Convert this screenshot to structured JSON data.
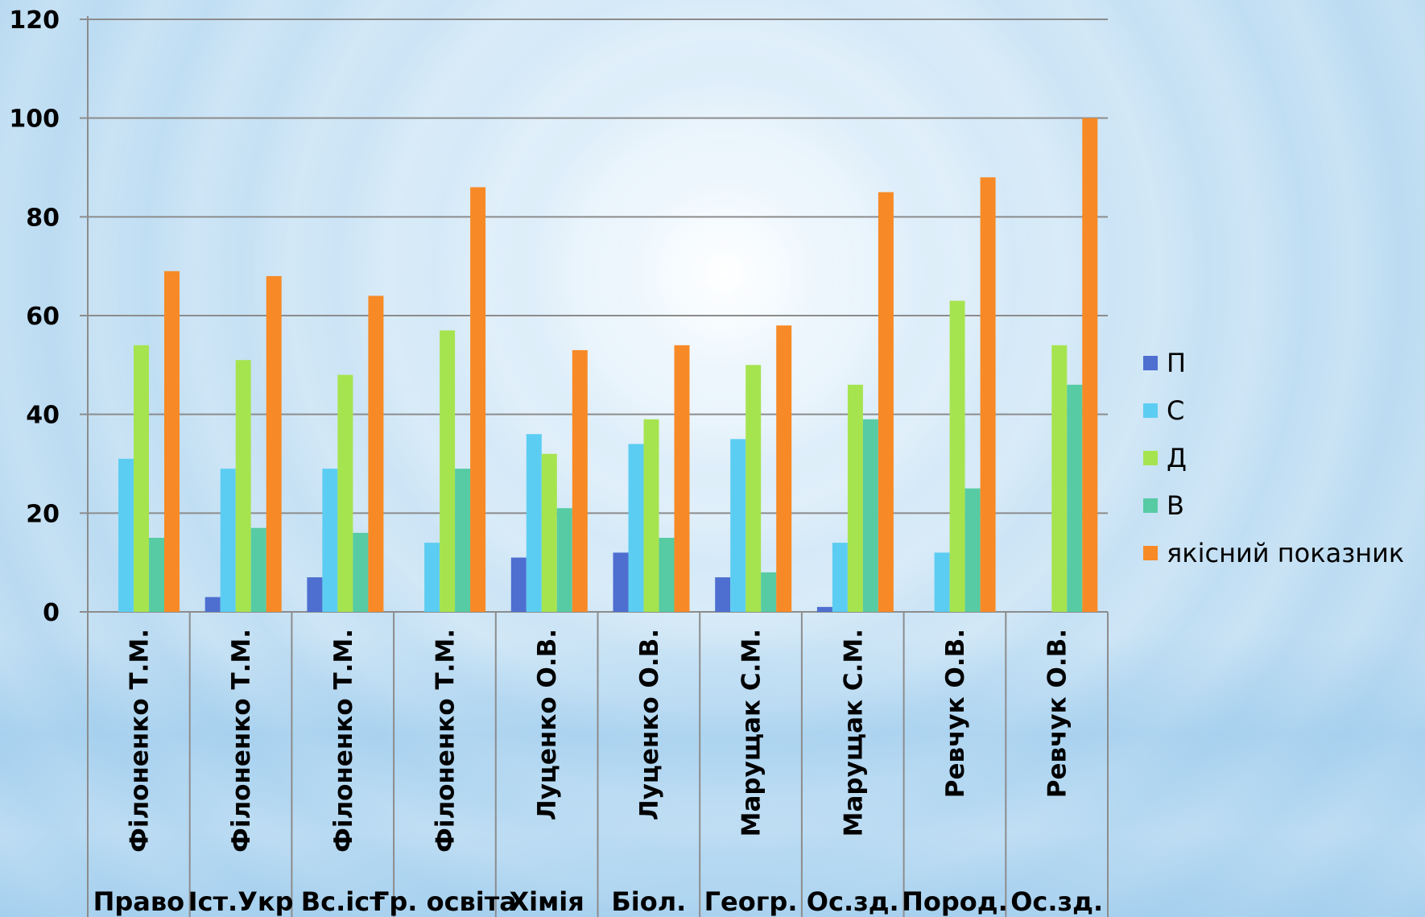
{
  "chart_data": {
    "type": "bar",
    "categories": [
      {
        "teacher": "Філоненко Т.М.",
        "subject": "Право"
      },
      {
        "teacher": "Філоненко Т.М.",
        "subject": "Іст.Укр"
      },
      {
        "teacher": "Філоненко Т.М.",
        "subject": "Вс.іст"
      },
      {
        "teacher": "Філоненко Т.М.",
        "subject": "Гр. освіта"
      },
      {
        "teacher": "Луценко О.В.",
        "subject": "Хімія"
      },
      {
        "teacher": "Луценко О.В.",
        "subject": "Біол."
      },
      {
        "teacher": "Марущак С.М.",
        "subject": "Геогр."
      },
      {
        "teacher": "Марущак С.М.",
        "subject": "Ос.зд."
      },
      {
        "teacher": "Ревчук О.В.",
        "subject": "Пород."
      },
      {
        "teacher": "Ревчук О.В.",
        "subject": "Ос.зд."
      }
    ],
    "series": [
      {
        "name": "П",
        "color": "#4e6fd0",
        "values": [
          0,
          3,
          7,
          0,
          11,
          12,
          7,
          1,
          0,
          0
        ]
      },
      {
        "name": "С",
        "color": "#5ccdf2",
        "values": [
          31,
          29,
          29,
          14,
          36,
          34,
          35,
          14,
          12,
          0
        ]
      },
      {
        "name": "Д",
        "color": "#a6e44f",
        "values": [
          54,
          51,
          48,
          57,
          32,
          39,
          50,
          46,
          63,
          54
        ]
      },
      {
        "name": "В",
        "color": "#57cba3",
        "values": [
          15,
          17,
          16,
          29,
          21,
          15,
          8,
          39,
          25,
          46
        ]
      },
      {
        "name": "якісний показник",
        "color": "#f78a26",
        "values": [
          69,
          68,
          64,
          86,
          53,
          54,
          58,
          85,
          88,
          100
        ]
      }
    ],
    "ylim": [
      0,
      120
    ],
    "yticks": [
      "0",
      "20",
      "40",
      "60",
      "80",
      "100",
      "120"
    ],
    "grid": true,
    "legend_position": "right",
    "title": "",
    "xlabel": "",
    "ylabel": ""
  }
}
